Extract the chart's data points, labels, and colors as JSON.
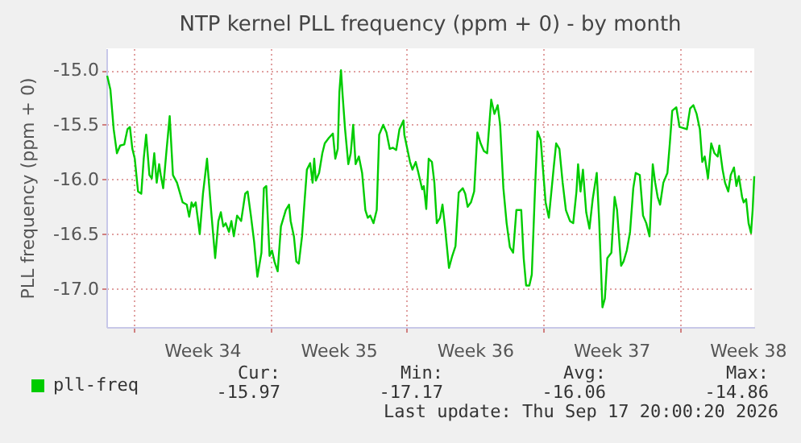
{
  "chart_data": {
    "type": "line",
    "title": "NTP kernel PLL frequency (ppm + 0) - by month",
    "ylabel": "PLL frequency (ppm + 0)",
    "xlim": [
      "2026-08-15T14:00",
      "2026-09-17T20:00"
    ],
    "xticks": [
      {
        "value": "2026-08-17T00:00",
        "label": null
      },
      {
        "value": "2026-08-20T12:00",
        "label": "Week 34"
      },
      {
        "value": "2026-08-24T00:00",
        "label": null
      },
      {
        "value": "2026-08-27T12:00",
        "label": "Week 35"
      },
      {
        "value": "2026-08-31T00:00",
        "label": null
      },
      {
        "value": "2026-09-03T12:00",
        "label": "Week 36"
      },
      {
        "value": "2026-09-07T00:00",
        "label": null
      },
      {
        "value": "2026-09-10T12:00",
        "label": "Week 37"
      },
      {
        "value": "2026-09-14T00:00",
        "label": null
      },
      {
        "value": "2026-09-17T12:00",
        "label": "Week 38"
      }
    ],
    "ylim": [
      -17.35,
      -14.8
    ],
    "yticks": [
      {
        "value": -17,
        "label": "-17.0"
      },
      {
        "value": -16.5,
        "label": "-16.5"
      },
      {
        "value": -16,
        "label": "-16.0"
      },
      {
        "value": -15.5,
        "label": "-15.5"
      },
      {
        "value": -15,
        "label": "-15.0"
      }
    ],
    "grid": true,
    "legend": "bottom",
    "x": [
      "2026-08-15T15:00",
      "2026-08-15T19:00",
      "2026-08-15T23:00",
      "2026-08-16T03:00",
      "2026-08-16T07:00",
      "2026-08-16T12:00",
      "2026-08-16T16:00",
      "2026-08-16T19:00",
      "2026-08-16T22:00",
      "2026-08-17T01:00",
      "2026-08-17T05:00",
      "2026-08-17T09:00",
      "2026-08-17T12:00",
      "2026-08-17T15:00",
      "2026-08-17T19:00",
      "2026-08-17T22:00",
      "2026-08-18T01:00",
      "2026-08-18T04:00",
      "2026-08-18T07:00",
      "2026-08-18T09:00",
      "2026-08-18T12:00",
      "2026-08-18T16:00",
      "2026-08-18T20:00",
      "2026-08-19T00:00",
      "2026-08-19T05:00",
      "2026-08-19T12:00",
      "2026-08-19T17:00",
      "2026-08-19T20:00",
      "2026-08-19T23:00",
      "2026-08-20T01:00",
      "2026-08-20T04:00",
      "2026-08-20T07:00",
      "2026-08-20T09:00",
      "2026-08-20T13:00",
      "2026-08-20T18:00",
      "2026-08-20T23:00",
      "2026-08-21T04:00",
      "2026-08-21T08:00",
      "2026-08-21T11:00",
      "2026-08-21T14:00",
      "2026-08-21T17:00",
      "2026-08-21T21:00",
      "2026-08-22T00:00",
      "2026-08-22T03:00",
      "2026-08-22T07:00",
      "2026-08-22T12:00",
      "2026-08-22T17:00",
      "2026-08-22T20:00",
      "2026-08-23T00:00",
      "2026-08-23T04:00",
      "2026-08-23T08:00",
      "2026-08-23T13:00",
      "2026-08-23T16:00",
      "2026-08-23T19:00",
      "2026-08-23T23:00",
      "2026-08-24T02:00",
      "2026-08-24T05:00",
      "2026-08-24T09:00",
      "2026-08-24T13:00",
      "2026-08-24T19:00",
      "2026-08-24T23:00",
      "2026-08-25T01:00",
      "2026-08-25T05:00",
      "2026-08-25T08:00",
      "2026-08-25T11:00",
      "2026-08-25T15:00",
      "2026-08-25T18:00",
      "2026-08-25T21:00",
      "2026-08-26T01:00",
      "2026-08-26T04:00",
      "2026-08-26T06:00",
      "2026-08-26T08:00",
      "2026-08-26T12:00",
      "2026-08-26T16:00",
      "2026-08-26T19:00",
      "2026-08-27T00:00",
      "2026-08-27T05:00",
      "2026-08-27T08:00",
      "2026-08-27T11:00",
      "2026-08-27T13:00",
      "2026-08-27T15:00",
      "2026-08-27T17:00",
      "2026-08-27T20:00",
      "2026-08-28T00:00",
      "2026-08-28T03:00",
      "2026-08-28T06:00",
      "2026-08-28T09:00",
      "2026-08-28T13:00",
      "2026-08-28T17:00",
      "2026-08-28T21:00",
      "2026-08-29T00:00",
      "2026-08-29T03:00",
      "2026-08-29T07:00",
      "2026-08-29T11:00",
      "2026-08-29T14:00",
      "2026-08-29T19:00",
      "2026-08-29T23:00",
      "2026-08-30T03:00",
      "2026-08-30T07:00",
      "2026-08-30T11:00",
      "2026-08-30T15:00",
      "2026-08-30T20:00",
      "2026-08-30T21:00",
      "2026-08-31T04:00",
      "2026-08-31T07:00",
      "2026-08-31T11:00",
      "2026-08-31T14:00",
      "2026-08-31T19:00",
      "2026-08-31T21:00",
      "2026-09-01T00:00",
      "2026-09-01T03:00",
      "2026-09-01T07:00",
      "2026-09-01T10:00",
      "2026-09-01T13:00",
      "2026-09-01T17:00",
      "2026-09-01T20:00",
      "2026-09-01T23:00",
      "2026-09-02T04:00",
      "2026-09-02T08:00",
      "2026-09-02T12:00",
      "2026-09-02T16:00",
      "2026-09-02T21:00",
      "2026-09-03T00:00",
      "2026-09-03T03:00",
      "2026-09-03T07:00",
      "2026-09-03T11:00",
      "2026-09-03T15:00",
      "2026-09-03T19:00",
      "2026-09-03T23:00",
      "2026-09-04T03:00",
      "2026-09-04T08:00",
      "2026-09-04T12:00",
      "2026-09-04T16:00",
      "2026-09-04T19:00",
      "2026-09-04T23:00",
      "2026-09-05T03:00",
      "2026-09-05T07:00",
      "2026-09-05T11:00",
      "2026-09-05T15:00",
      "2026-09-05T21:00",
      "2026-09-06T00:00",
      "2026-09-06T03:00",
      "2026-09-06T07:00",
      "2026-09-06T10:00",
      "2026-09-06T14:00",
      "2026-09-06T17:00",
      "2026-09-06T21:00",
      "2026-09-07T03:00",
      "2026-09-07T07:00",
      "2026-09-07T13:00",
      "2026-09-07T16:00",
      "2026-09-07T20:00",
      "2026-09-08T00:00",
      "2026-09-08T04:00",
      "2026-09-08T09:00",
      "2026-09-08T13:00",
      "2026-09-08T17:00",
      "2026-09-08T19:00",
      "2026-09-08T22:00",
      "2026-09-09T01:00",
      "2026-09-09T05:00",
      "2026-09-09T09:00",
      "2026-09-09T13:00",
      "2026-09-09T18:00",
      "2026-09-09T21:00",
      "2026-09-10T01:00",
      "2026-09-10T04:00",
      "2026-09-10T07:00",
      "2026-09-10T12:00",
      "2026-09-10T16:00",
      "2026-09-10T19:00",
      "2026-09-11T00:00",
      "2026-09-11T03:00",
      "2026-09-11T07:00",
      "2026-09-11T11:00",
      "2026-09-11T15:00",
      "2026-09-11T18:00",
      "2026-09-11T23:00",
      "2026-09-12T03:00",
      "2026-09-12T07:00",
      "2026-09-12T11:00",
      "2026-09-12T15:00",
      "2026-09-12T18:00",
      "2026-09-12T21:00",
      "2026-09-13T00:00",
      "2026-09-13T04:00",
      "2026-09-13T09:00",
      "2026-09-13T12:00",
      "2026-09-13T15:00",
      "2026-09-13T20:00",
      "2026-09-14T00:00",
      "2026-09-14T05:00",
      "2026-09-14T09:00",
      "2026-09-14T13:00",
      "2026-09-14T17:00",
      "2026-09-14T21:00",
      "2026-09-15T01:00",
      "2026-09-15T04:00",
      "2026-09-15T07:00",
      "2026-09-15T11:00",
      "2026-09-15T15:00",
      "2026-09-15T19:00",
      "2026-09-15T23:00",
      "2026-09-16T01:00",
      "2026-09-16T05:00",
      "2026-09-16T08:00",
      "2026-09-16T12:00",
      "2026-09-16T15:00",
      "2026-09-16T19:00",
      "2026-09-16T22:00",
      "2026-09-17T01:00",
      "2026-09-17T05:00",
      "2026-09-17T07:00",
      "2026-09-17T10:00",
      "2026-09-17T13:00",
      "2026-09-17T16:00",
      "2026-09-17T18:00",
      "2026-09-17T20:00"
    ],
    "series": [
      {
        "name": "pll-freq",
        "color": "#00cc00",
        "values": [
          -15.05,
          -15.18,
          -15.54,
          -15.76,
          -15.69,
          -15.68,
          -15.54,
          -15.52,
          -15.72,
          -15.81,
          -16.11,
          -16.13,
          -15.81,
          -15.59,
          -15.96,
          -15.99,
          -15.76,
          -16.03,
          -15.86,
          -15.96,
          -16.08,
          -15.74,
          -15.42,
          -15.96,
          -16.03,
          -16.21,
          -16.23,
          -16.34,
          -16.21,
          -16.25,
          -16.21,
          -16.38,
          -16.5,
          -16.13,
          -15.81,
          -16.28,
          -16.72,
          -16.38,
          -16.3,
          -16.43,
          -16.4,
          -16.48,
          -16.38,
          -16.52,
          -16.33,
          -16.38,
          -16.13,
          -16.11,
          -16.33,
          -16.57,
          -16.89,
          -16.67,
          -16.08,
          -16.06,
          -16.7,
          -16.65,
          -16.75,
          -16.84,
          -16.43,
          -16.28,
          -16.23,
          -16.38,
          -16.52,
          -16.75,
          -16.77,
          -16.52,
          -16.21,
          -15.91,
          -15.85,
          -16.03,
          -15.81,
          -16.01,
          -15.94,
          -15.76,
          -15.67,
          -15.62,
          -15.58,
          -15.81,
          -15.72,
          -15.2,
          -15.0,
          -15.23,
          -15.54,
          -15.86,
          -15.76,
          -15.5,
          -15.86,
          -15.79,
          -15.94,
          -16.28,
          -16.35,
          -16.33,
          -16.4,
          -16.28,
          -15.59,
          -15.5,
          -15.57,
          -15.72,
          -15.71,
          -15.73,
          -15.54,
          -15.46,
          -15.59,
          -15.84,
          -15.91,
          -15.84,
          -15.93,
          -16.09,
          -16.06,
          -16.27,
          -15.81,
          -15.84,
          -16.03,
          -16.4,
          -16.35,
          -16.23,
          -16.43,
          -16.81,
          -16.7,
          -16.61,
          -16.12,
          -16.08,
          -16.13,
          -16.25,
          -16.21,
          -16.11,
          -15.57,
          -15.67,
          -15.74,
          -15.76,
          -15.27,
          -15.4,
          -15.32,
          -15.5,
          -16.08,
          -16.4,
          -16.62,
          -16.67,
          -16.28,
          -16.28,
          -16.72,
          -16.97,
          -16.97,
          -16.87,
          -16.08,
          -15.56,
          -15.64,
          -16.21,
          -16.35,
          -15.89,
          -15.67,
          -15.72,
          -16.03,
          -16.28,
          -16.38,
          -16.4,
          -16.11,
          -15.86,
          -16.11,
          -15.91,
          -16.3,
          -16.45,
          -16.18,
          -15.94,
          -16.38,
          -17.17,
          -17.09,
          -16.72,
          -16.67,
          -16.16,
          -16.28,
          -16.79,
          -16.75,
          -16.65,
          -16.48,
          -16.08,
          -15.94,
          -15.96,
          -16.33,
          -16.4,
          -16.52,
          -15.86,
          -16.03,
          -16.16,
          -16.23,
          -16.03,
          -15.94,
          -15.67,
          -15.37,
          -15.34,
          -15.52,
          -15.53,
          -15.54,
          -15.35,
          -15.32,
          -15.4,
          -15.54,
          -15.84,
          -15.79,
          -15.99,
          -15.67,
          -15.76,
          -15.79,
          -15.69,
          -15.91,
          -16.03,
          -16.11,
          -15.96,
          -15.89,
          -16.06,
          -15.97,
          -16.16,
          -16.21,
          -16.18,
          -16.4,
          -16.49,
          -16.28,
          -15.97
        ]
      }
    ],
    "annotations": [
      "Cur:",
      "-15.97",
      "Min:",
      "-17.17",
      "Avg:",
      "-16.06",
      "Max:",
      "-14.86",
      "Last update: Thu Sep 17 20:00:20 2026"
    ]
  }
}
